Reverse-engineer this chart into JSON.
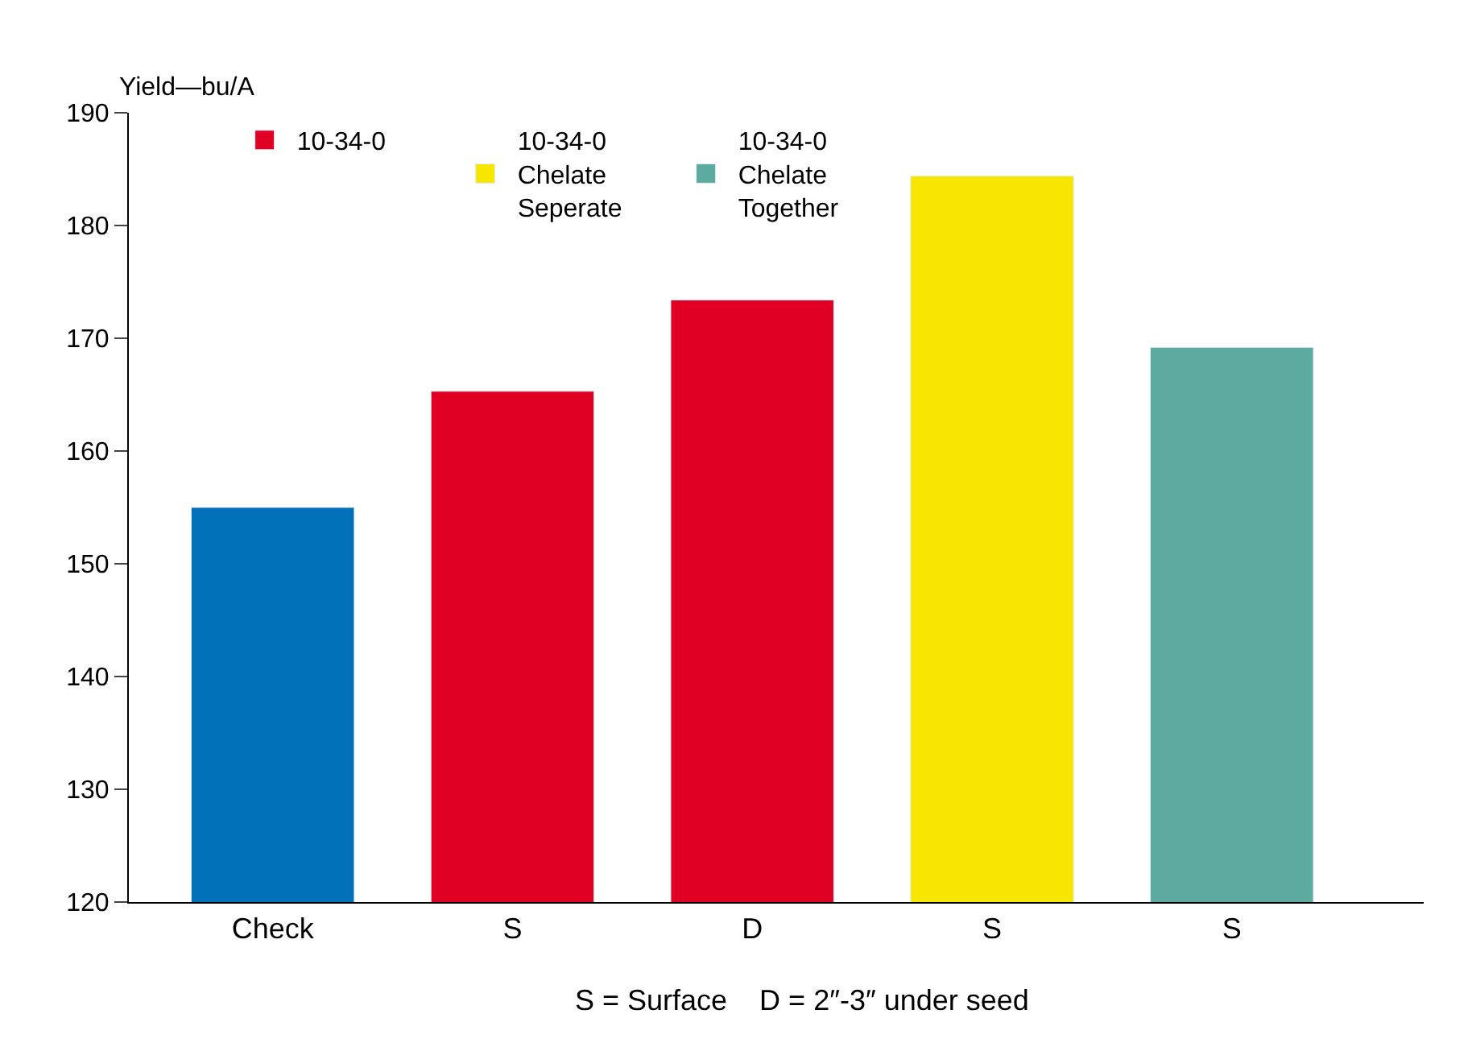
{
  "chart_data": {
    "type": "bar",
    "ylabel": "Yield—bu/A",
    "categories": [
      "Check",
      "S",
      "D",
      "S",
      "S"
    ],
    "series": [
      {
        "color": "#0070b8",
        "values": [
          155,
          null,
          null,
          null,
          null
        ]
      },
      {
        "name": "10-34-0",
        "color": "#e00024",
        "values": [
          null,
          165.3,
          173.4,
          null,
          null
        ]
      },
      {
        "name": "10-34-0\nChelate\nSeperate",
        "color": "#f7e600",
        "values": [
          null,
          null,
          null,
          184.4,
          null
        ]
      },
      {
        "name": "10-34-0\nChelate\nTogether",
        "color": "#5dab9e",
        "values": [
          null,
          null,
          null,
          null,
          169.2
        ]
      }
    ],
    "ylim": [
      120,
      190
    ],
    "yticks": [
      120,
      130,
      140,
      150,
      160,
      170,
      180,
      190
    ],
    "legend": "top left",
    "annotations": [
      "S = Surface    D = 2″-3″ under seed"
    ]
  }
}
